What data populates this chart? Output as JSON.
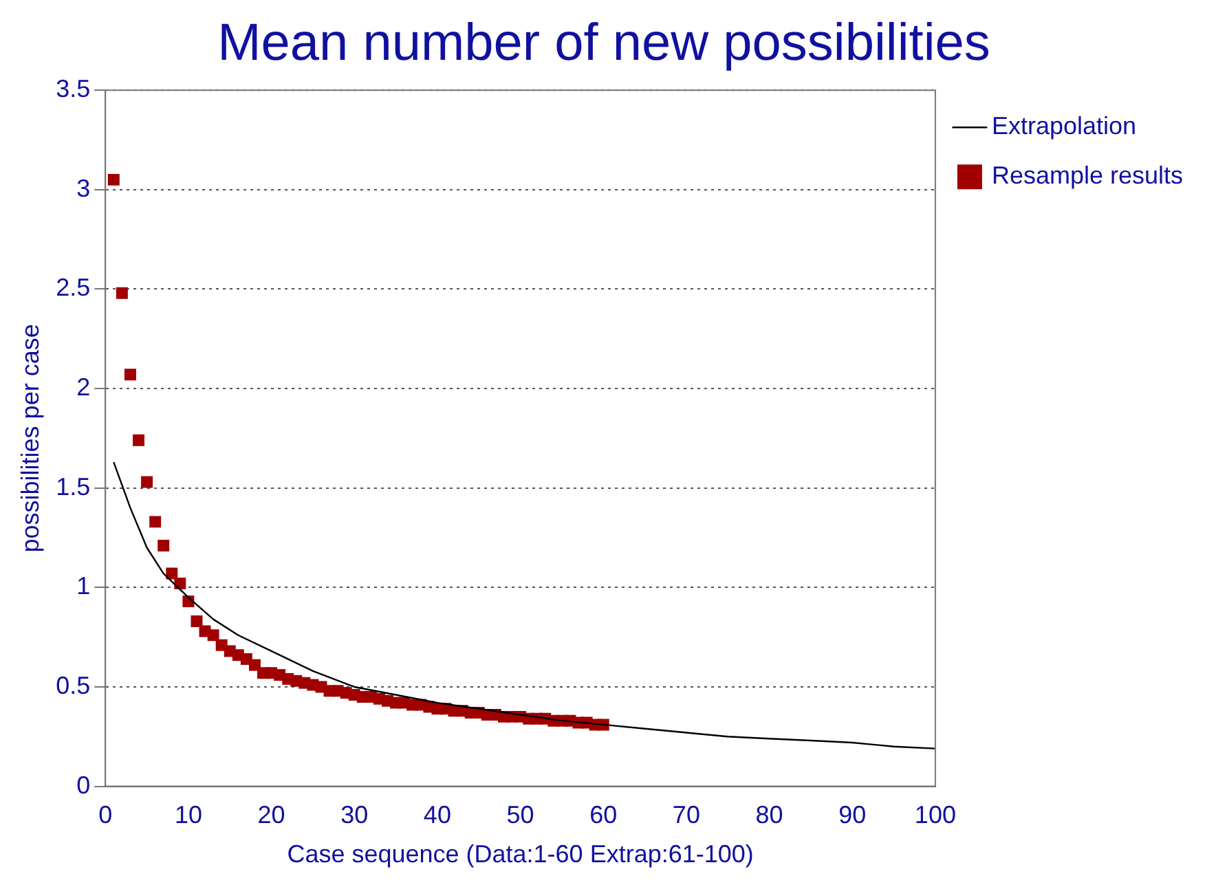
{
  "chart_data": {
    "type": "scatter",
    "title": "Mean number of new possibilities",
    "xlabel": "Case sequence (Data:1-60 Extrap:61-100)",
    "ylabel": "possibilities per case",
    "xlim": [
      0,
      100
    ],
    "xticks": [
      0,
      10,
      20,
      30,
      40,
      50,
      60,
      70,
      80,
      90,
      100
    ],
    "ylim": [
      0,
      3.5
    ],
    "yticks": [
      0,
      0.5,
      1,
      1.5,
      2,
      2.5,
      3,
      3.5
    ],
    "grid": "y",
    "legend": "top right",
    "series": [
      {
        "name": "Resample results",
        "marker": "square",
        "color": "#a00000",
        "x": [
          1,
          2,
          3,
          4,
          5,
          6,
          7,
          8,
          9,
          10,
          11,
          12,
          13,
          14,
          15,
          16,
          17,
          18,
          19,
          20,
          21,
          22,
          23,
          24,
          25,
          26,
          27,
          28,
          29,
          30,
          31,
          32,
          33,
          34,
          35,
          36,
          37,
          38,
          39,
          40,
          41,
          42,
          43,
          44,
          45,
          46,
          47,
          48,
          49,
          50,
          51,
          52,
          53,
          54,
          55,
          56,
          57,
          58,
          59,
          60
        ],
        "values": [
          3.05,
          2.48,
          2.07,
          1.74,
          1.53,
          1.33,
          1.21,
          1.07,
          1.02,
          0.93,
          0.83,
          0.78,
          0.76,
          0.71,
          0.68,
          0.66,
          0.64,
          0.61,
          0.57,
          0.57,
          0.56,
          0.54,
          0.53,
          0.52,
          0.51,
          0.5,
          0.48,
          0.48,
          0.47,
          0.46,
          0.45,
          0.45,
          0.44,
          0.43,
          0.42,
          0.42,
          0.41,
          0.41,
          0.4,
          0.39,
          0.39,
          0.38,
          0.38,
          0.37,
          0.37,
          0.36,
          0.36,
          0.35,
          0.35,
          0.35,
          0.34,
          0.34,
          0.34,
          0.33,
          0.33,
          0.33,
          0.32,
          0.32,
          0.31,
          0.31
        ]
      },
      {
        "name": "Extrapolation",
        "type": "line",
        "marker": "none",
        "line_style": "solid",
        "color": "#000000",
        "x": [
          1,
          3,
          5,
          7,
          10,
          13,
          16,
          20,
          25,
          30,
          35,
          40,
          45,
          50,
          55,
          60,
          65,
          70,
          75,
          80,
          85,
          90,
          95,
          100
        ],
        "values": [
          1.63,
          1.4,
          1.2,
          1.07,
          0.95,
          0.84,
          0.76,
          0.68,
          0.58,
          0.5,
          0.46,
          0.42,
          0.39,
          0.36,
          0.33,
          0.31,
          0.29,
          0.27,
          0.25,
          0.24,
          0.23,
          0.22,
          0.2,
          0.19
        ]
      }
    ]
  }
}
